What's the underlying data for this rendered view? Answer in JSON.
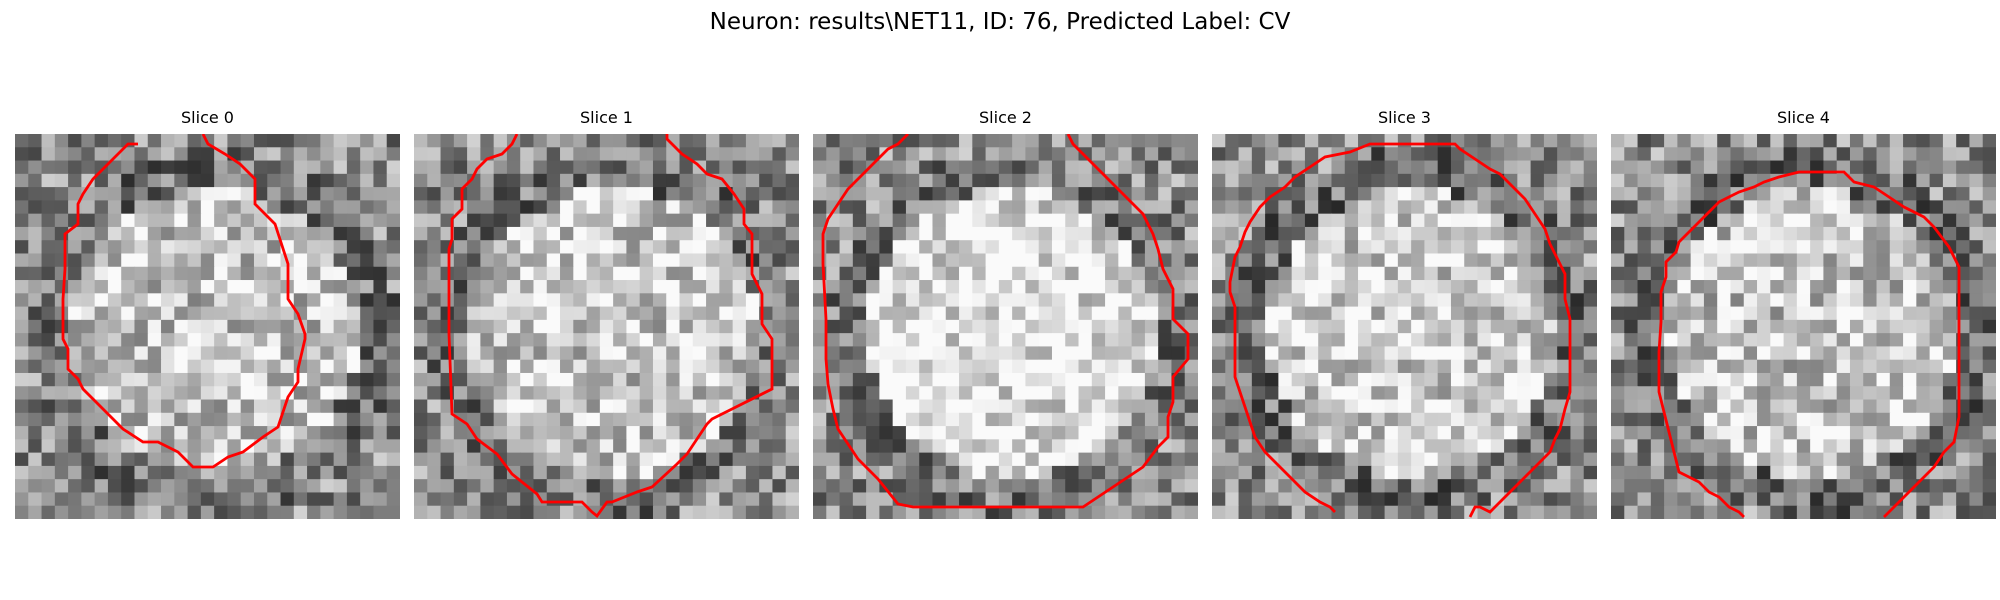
{
  "figure": {
    "title": "Neuron: results\\NET11, ID: 76, Predicted Label: CV",
    "outline_color": "#ff0000",
    "colormap": "gray"
  },
  "panels": [
    {
      "title": "Slice 0"
    },
    {
      "title": "Slice 1"
    },
    {
      "title": "Slice 2"
    },
    {
      "title": "Slice 3"
    },
    {
      "title": "Slice 4"
    }
  ]
}
